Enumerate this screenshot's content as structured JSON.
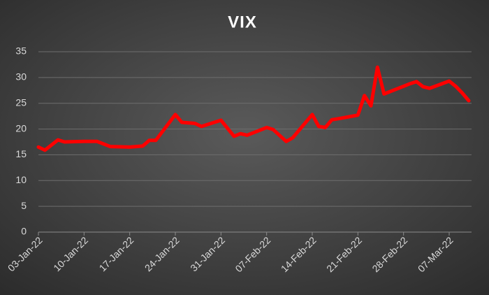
{
  "chart_data": {
    "type": "line",
    "title": "VIX",
    "x": [
      "03-Jan-22",
      "04-Jan-22",
      "06-Jan-22",
      "07-Jan-22",
      "10-Jan-22",
      "12-Jan-22",
      "14-Jan-22",
      "17-Jan-22",
      "19-Jan-22",
      "20-Jan-22",
      "21-Jan-22",
      "24-Jan-22",
      "25-Jan-22",
      "27-Jan-22",
      "28-Jan-22",
      "31-Jan-22",
      "02-Feb-22",
      "03-Feb-22",
      "04-Feb-22",
      "07-Feb-22",
      "08-Feb-22",
      "10-Feb-22",
      "11-Feb-22",
      "14-Feb-22",
      "15-Feb-22",
      "16-Feb-22",
      "17-Feb-22",
      "18-Feb-22",
      "21-Feb-22",
      "22-Feb-22",
      "23-Feb-22",
      "24-Feb-22",
      "25-Feb-22",
      "28-Feb-22",
      "01-Mar-22",
      "02-Mar-22",
      "03-Mar-22",
      "04-Mar-22",
      "07-Mar-22",
      "08-Mar-22",
      "09-Mar-22",
      "10-Mar-22"
    ],
    "series": [
      {
        "color": "#ff0000",
        "values": [
          16.5,
          15.9,
          17.9,
          17.5,
          17.6,
          17.6,
          16.6,
          16.5,
          16.7,
          17.8,
          17.8,
          22.8,
          21.3,
          21.1,
          20.5,
          21.7,
          18.6,
          19.1,
          18.8,
          20.3,
          19.9,
          17.6,
          18.3,
          22.8,
          20.5,
          20.3,
          21.8,
          22.0,
          22.7,
          26.5,
          24.5,
          32.0,
          26.8,
          28.3,
          28.8,
          29.2,
          28.2,
          27.9,
          29.3,
          28.3,
          27.0,
          25.5
        ]
      }
    ],
    "xlim": [
      "03-Jan-22",
      "10-Mar-22"
    ],
    "xticks": [
      "03-Jan-22",
      "10-Jan-22",
      "17-Jan-22",
      "24-Jan-22",
      "31-Jan-22",
      "07-Feb-22",
      "14-Feb-22",
      "21-Feb-22",
      "28-Feb-22",
      "07-Mar-22"
    ],
    "ylim": [
      0,
      35
    ],
    "yticks": [
      0,
      5,
      10,
      15,
      20,
      25,
      30,
      35
    ],
    "grid": true
  }
}
